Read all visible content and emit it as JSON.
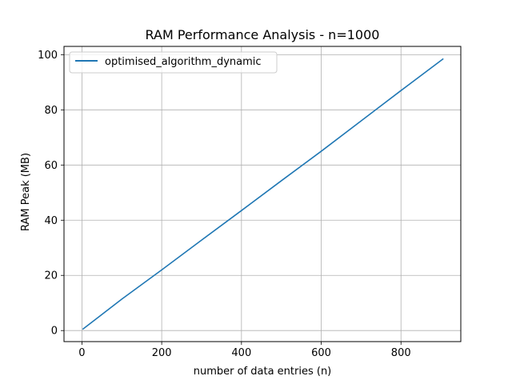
{
  "chart_data": {
    "type": "line",
    "title": "RAM Performance Analysis - n=1000",
    "xlabel": "number of data entries (n)",
    "ylabel": "RAM Peak (MB)",
    "xlim": [
      -45,
      950
    ],
    "ylim": [
      -4,
      103
    ],
    "xticks": [
      0,
      200,
      400,
      600,
      800
    ],
    "yticks": [
      0,
      20,
      40,
      60,
      80,
      100
    ],
    "grid": true,
    "legend_position": "upper-left",
    "series": [
      {
        "name": "optimised_algorithm_dynamic",
        "color": "#1f77b4",
        "x": [
          3,
          100,
          200,
          300,
          400,
          500,
          600,
          700,
          800,
          905
        ],
        "y": [
          0.6,
          11.4,
          22.0,
          32.8,
          43.5,
          54.3,
          65.0,
          76.0,
          87.0,
          98.4
        ]
      }
    ]
  }
}
